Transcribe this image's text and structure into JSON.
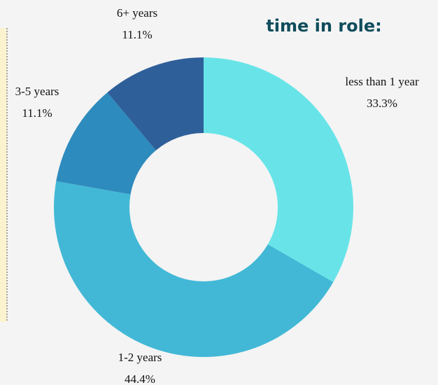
{
  "chart_data": {
    "type": "pie",
    "title": "time in role:",
    "categories": [
      "less than 1 year",
      "1-2 years",
      "3-5 years",
      "6+ years"
    ],
    "values": [
      33.3,
      44.4,
      11.1,
      11.1
    ],
    "value_labels": [
      "33.3%",
      "44.4%",
      "11.1%",
      "11.1%"
    ],
    "colors": [
      "#68e4e8",
      "#42b8d6",
      "#2e8bbd",
      "#2e5f99"
    ],
    "donut": true
  }
}
